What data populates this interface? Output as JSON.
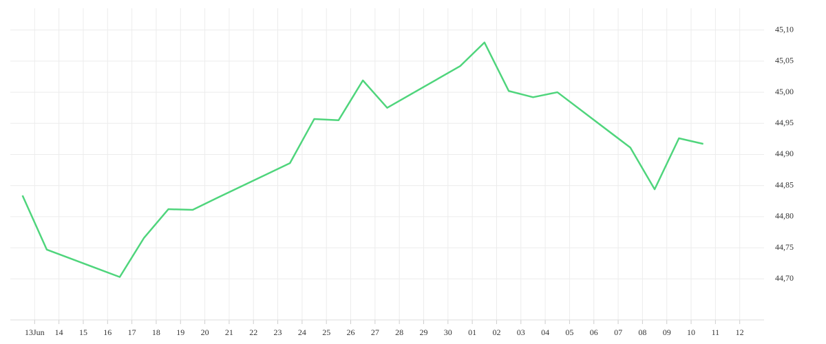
{
  "chart_data": {
    "type": "line",
    "x": [
      -0.5,
      0.5,
      3.5,
      4.5,
      5.5,
      6.5,
      7.5,
      10.5,
      11.5,
      12.5,
      13.5,
      14.5,
      17.5,
      18.5,
      19.5,
      20.5,
      21.5,
      24.5,
      25.5,
      26.5,
      27.5
    ],
    "series": [
      {
        "color": "#4fd57c",
        "values": [
          44.834,
          44.747,
          44.703,
          44.766,
          44.812,
          44.811,
          44.83,
          44.886,
          44.957,
          44.955,
          45.019,
          44.975,
          45.042,
          45.08,
          45.002,
          44.992,
          45.0,
          44.911,
          44.844,
          44.926,
          44.917
        ]
      }
    ],
    "xlim": [
      -1,
      30
    ],
    "xticks": [
      {
        "value": 0,
        "label": "13Jun"
      },
      {
        "value": 1,
        "label": "14"
      },
      {
        "value": 2,
        "label": "15"
      },
      {
        "value": 3,
        "label": "16"
      },
      {
        "value": 4,
        "label": "17"
      },
      {
        "value": 5,
        "label": "18"
      },
      {
        "value": 6,
        "label": "19"
      },
      {
        "value": 7,
        "label": "20"
      },
      {
        "value": 8,
        "label": "21"
      },
      {
        "value": 9,
        "label": "22"
      },
      {
        "value": 10,
        "label": "23"
      },
      {
        "value": 11,
        "label": "24"
      },
      {
        "value": 12,
        "label": "25"
      },
      {
        "value": 13,
        "label": "26"
      },
      {
        "value": 14,
        "label": "27"
      },
      {
        "value": 15,
        "label": "28"
      },
      {
        "value": 16,
        "label": "29"
      },
      {
        "value": 17,
        "label": "30"
      },
      {
        "value": 18,
        "label": "01"
      },
      {
        "value": 19,
        "label": "02"
      },
      {
        "value": 20,
        "label": "03"
      },
      {
        "value": 21,
        "label": "04"
      },
      {
        "value": 22,
        "label": "05"
      },
      {
        "value": 23,
        "label": "06"
      },
      {
        "value": 24,
        "label": "07"
      },
      {
        "value": 25,
        "label": "08"
      },
      {
        "value": 26,
        "label": "09"
      },
      {
        "value": 27,
        "label": "10"
      },
      {
        "value": 28,
        "label": "11"
      },
      {
        "value": 29,
        "label": "12"
      }
    ],
    "ylim": [
      44.634,
      45.135
    ],
    "yticks": [
      {
        "value": 44.7,
        "label": "44,70"
      },
      {
        "value": 44.75,
        "label": "44,75"
      },
      {
        "value": 44.8,
        "label": "44,80"
      },
      {
        "value": 44.85,
        "label": "44,85"
      },
      {
        "value": 44.9,
        "label": "44,90"
      },
      {
        "value": 44.95,
        "label": "44,95"
      },
      {
        "value": 45.0,
        "label": "45,00"
      },
      {
        "value": 45.05,
        "label": "45,05"
      },
      {
        "value": 45.1,
        "label": "45,10"
      }
    ],
    "grid": true
  }
}
